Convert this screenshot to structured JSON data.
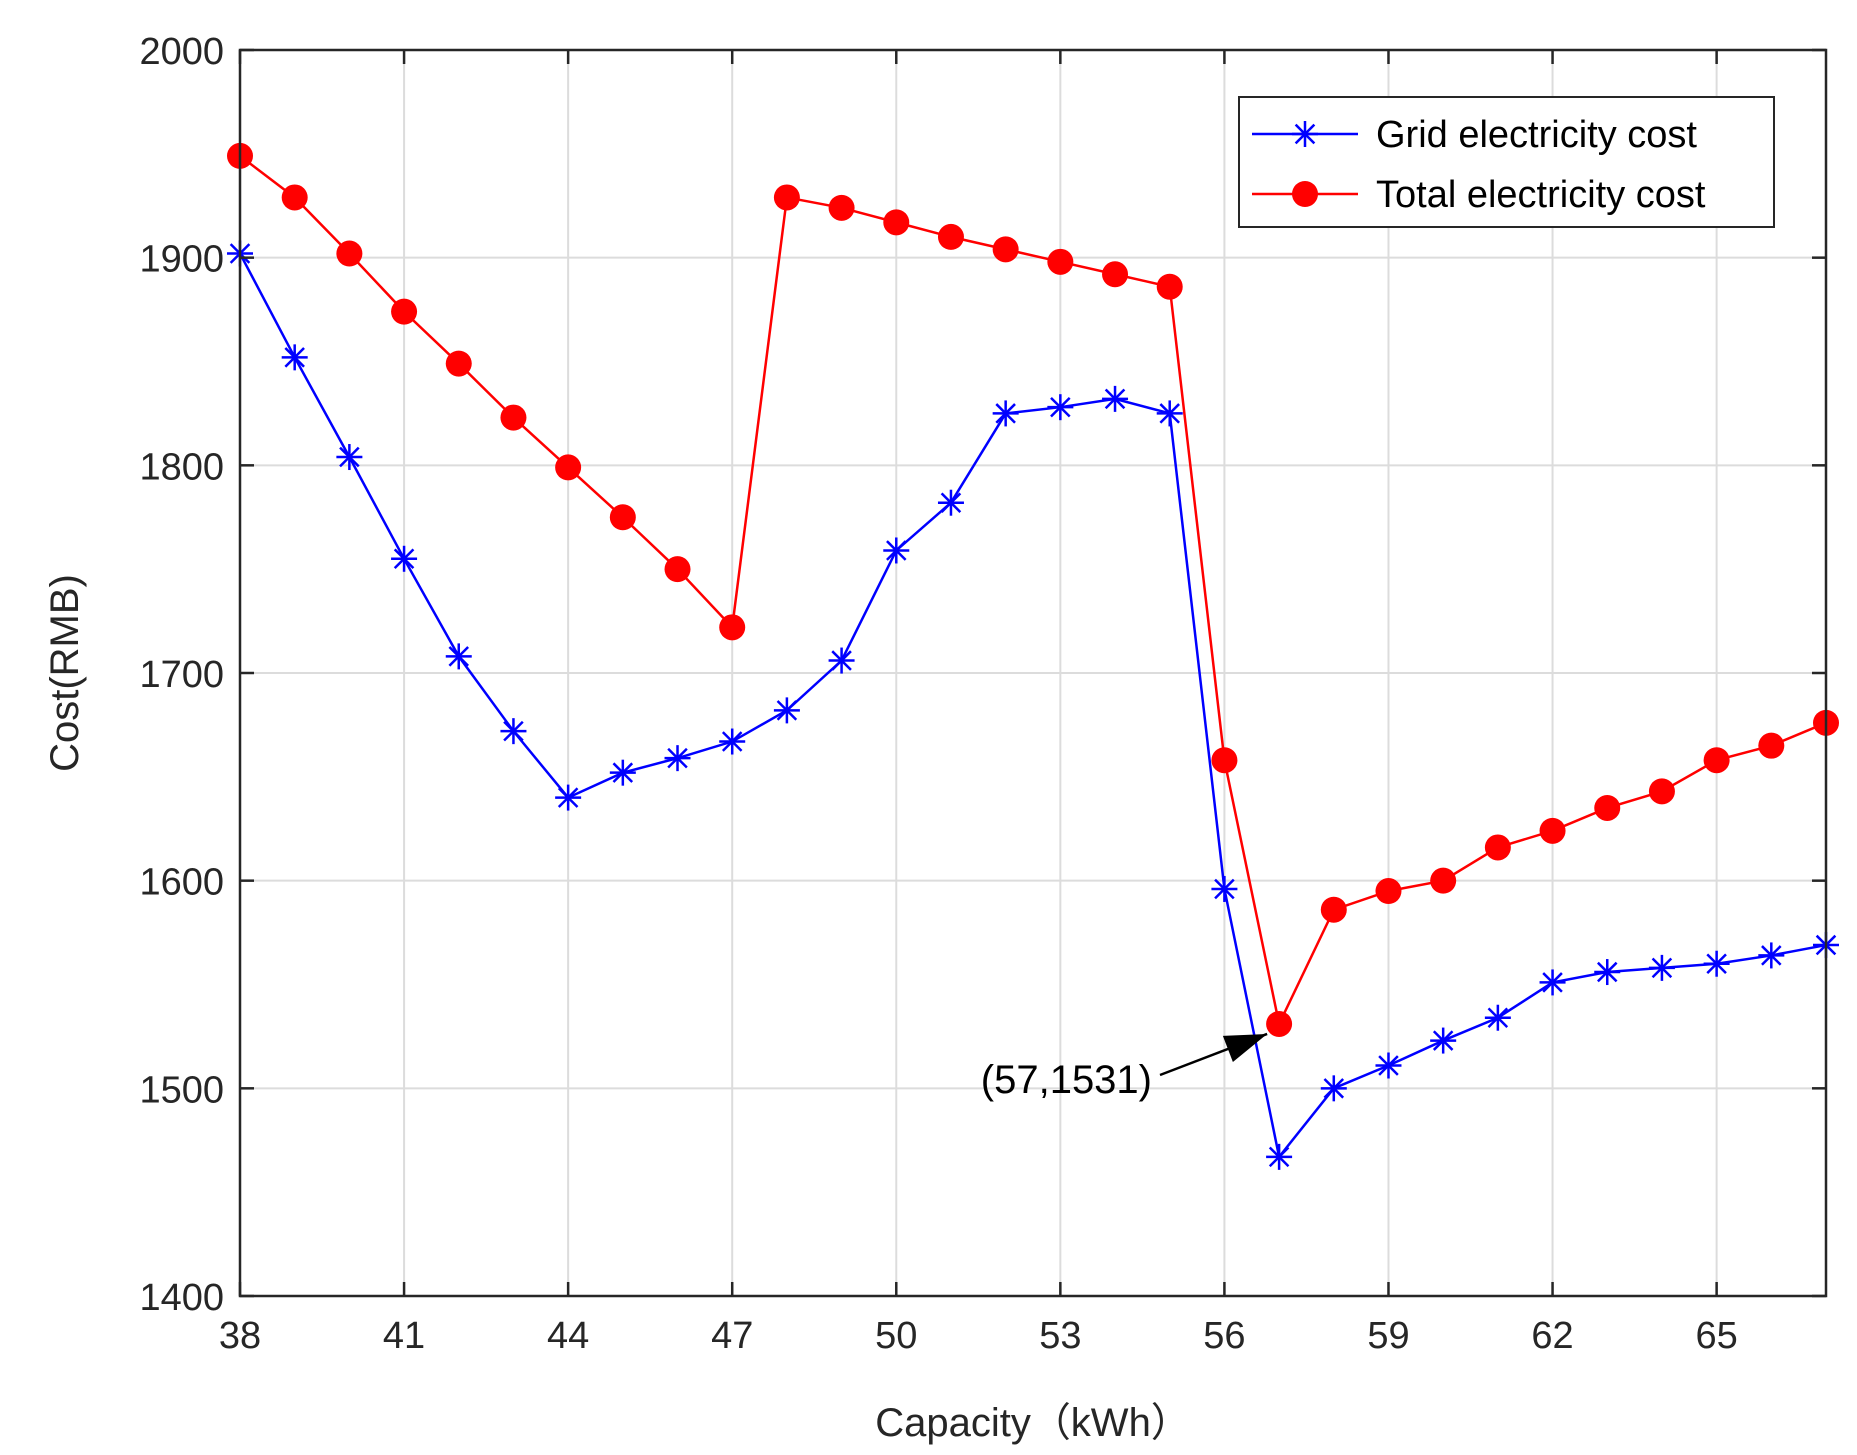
{
  "colors": {
    "grid_series": "#0000ff",
    "total_series": "#ff0000",
    "axes": "#262626",
    "gridlines": "#dcdcdc"
  },
  "chart_data": {
    "type": "line",
    "title": "",
    "xlabel": "Capacity（kWh）",
    "ylabel": "Cost(RMB)",
    "xlim": [
      38,
      67
    ],
    "ylim": [
      1400,
      2000
    ],
    "grid": true,
    "legend_position": "top-right",
    "x_ticks": [
      38,
      41,
      44,
      47,
      50,
      53,
      56,
      59,
      62,
      65
    ],
    "x_tick_labels": [
      "38",
      "41",
      "44",
      "47",
      "50",
      "53",
      "56",
      "59",
      "62",
      "65"
    ],
    "y_ticks": [
      1400,
      1500,
      1600,
      1700,
      1800,
      1900,
      2000
    ],
    "y_tick_labels": [
      "1400",
      "1500",
      "1600",
      "1700",
      "1800",
      "1900",
      "2000"
    ],
    "x": [
      38,
      39,
      40,
      41,
      42,
      43,
      44,
      45,
      46,
      47,
      48,
      49,
      50,
      51,
      52,
      53,
      54,
      55,
      56,
      57,
      58,
      59,
      60,
      61,
      62,
      63,
      64,
      65,
      66,
      67
    ],
    "series": [
      {
        "name": "Grid electricity cost",
        "marker": "asterisk",
        "values": [
          1902,
          1852,
          1804,
          1755,
          1708,
          1672,
          1640,
          1652,
          1659,
          1667,
          1682,
          1706,
          1759,
          1782,
          1825,
          1828,
          1832,
          1825,
          1596,
          1467,
          1500,
          1511,
          1523,
          1534,
          1551,
          1556,
          1558,
          1560,
          1564,
          1569
        ]
      },
      {
        "name": "Total electricity cost",
        "marker": "circle",
        "values": [
          1949,
          1929,
          1902,
          1874,
          1849,
          1823,
          1799,
          1775,
          1750,
          1722,
          1929,
          1924,
          1917,
          1910,
          1904,
          1898,
          1892,
          1886,
          1658,
          1531,
          1586,
          1595,
          1600,
          1616,
          1624,
          1635,
          1643,
          1658,
          1665,
          1676
        ]
      }
    ],
    "annotations": [
      {
        "text": "(57,1531)",
        "x": 57,
        "y": 1531
      }
    ]
  }
}
